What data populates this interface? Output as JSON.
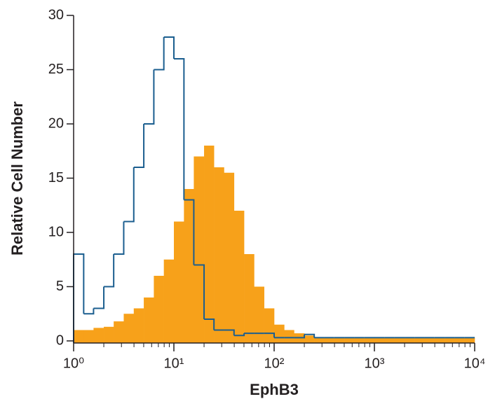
{
  "chart_data": {
    "type": "histogram",
    "x_label": "EphB3",
    "y_label": "Relative Cell Number",
    "x_log": true,
    "bins": [
      1,
      1.26,
      1.58,
      2,
      2.51,
      3.16,
      3.98,
      5.01,
      6.31,
      7.94,
      10,
      12.6,
      15.8,
      20,
      25.1,
      31.6,
      39.8,
      50.1,
      63.1,
      79.4,
      100,
      126,
      158,
      200,
      251,
      316,
      398,
      501,
      631,
      794,
      1000,
      1260,
      1580,
      2000,
      2510,
      3160,
      3980,
      5010,
      6310,
      7940,
      10000
    ],
    "series": [
      {
        "color": "#f7a11a",
        "fill": true,
        "values": [
          1,
          1,
          1.2,
          1.3,
          1.8,
          2.5,
          3,
          4,
          6,
          7.5,
          11,
          14,
          17,
          18,
          16,
          15.5,
          12,
          8,
          5,
          3,
          1.5,
          1,
          0.7,
          0.5,
          0.3,
          0.3,
          0.3,
          0.3,
          0.3,
          0.3,
          0.3,
          0.3,
          0.3,
          0.3,
          0.3,
          0.3,
          0.3,
          0.3,
          0.3,
          0.3
        ]
      },
      {
        "color": "#1b5e8f",
        "fill": false,
        "values": [
          8,
          2.5,
          3,
          5,
          8,
          11,
          16,
          20,
          25,
          28,
          26,
          13,
          7,
          2,
          1,
          1,
          0.5,
          0.7,
          0.7,
          0.7,
          0.3,
          0.3,
          0.3,
          0.6,
          0.3,
          0.3,
          0.3,
          0.3,
          0.3,
          0.3,
          0.3,
          0.3,
          0.3,
          0.3,
          0.3,
          0.3,
          0.3,
          0.3,
          0.3,
          0.3
        ]
      }
    ],
    "xlim": [
      1,
      10000
    ],
    "xticks": [
      {
        "value": 1,
        "label": "10⁰"
      },
      {
        "value": 10,
        "label": "10¹"
      },
      {
        "value": 100,
        "label": "10²"
      },
      {
        "value": 1000,
        "label": "10³"
      },
      {
        "value": 10000,
        "label": "10⁴"
      }
    ],
    "xminorticks": [
      2,
      3,
      4,
      5,
      6,
      7,
      8,
      9,
      20,
      30,
      40,
      50,
      60,
      70,
      80,
      90,
      200,
      300,
      400,
      500,
      600,
      700,
      800,
      900,
      2000,
      3000,
      4000,
      5000,
      6000,
      7000,
      8000,
      9000
    ],
    "ylim": [
      0,
      30
    ],
    "yticks": [
      0,
      5,
      10,
      15,
      20,
      25,
      30
    ]
  }
}
